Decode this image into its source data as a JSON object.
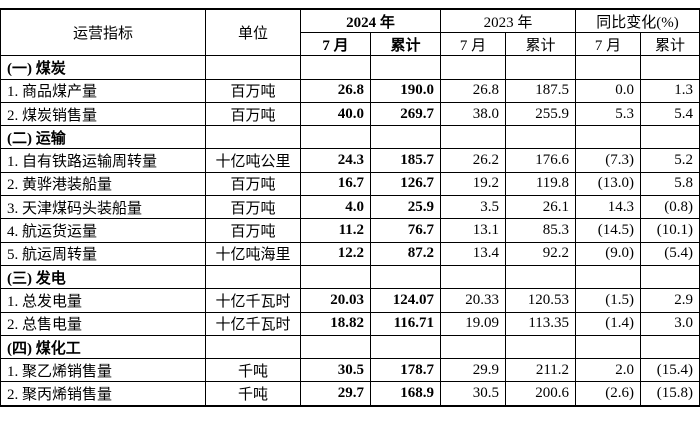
{
  "table": {
    "header": {
      "indicator": "运营指标",
      "unit": "单位",
      "year1": "2024 年",
      "year2": "2023 年",
      "change": "同比变化(%)",
      "sub": [
        "7 月",
        "累计",
        "7 月",
        "累计",
        "7 月",
        "累计"
      ]
    },
    "sections": [
      {
        "title": "(一) 煤炭",
        "rows": [
          [
            "1. 商品煤产量",
            "百万吨",
            "26.8",
            "190.0",
            "26.8",
            "187.5",
            "0.0",
            "1.3"
          ],
          [
            "2. 煤炭销售量",
            "百万吨",
            "40.0",
            "269.7",
            "38.0",
            "255.9",
            "5.3",
            "5.4"
          ]
        ]
      },
      {
        "title": "(二) 运输",
        "rows": [
          [
            "1. 自有铁路运输周转量",
            "十亿吨公里",
            "24.3",
            "185.7",
            "26.2",
            "176.6",
            "(7.3)",
            "5.2"
          ],
          [
            "2. 黄骅港装船量",
            "百万吨",
            "16.7",
            "126.7",
            "19.2",
            "119.8",
            "(13.0)",
            "5.8"
          ],
          [
            "3. 天津煤码头装船量",
            "百万吨",
            "4.0",
            "25.9",
            "3.5",
            "26.1",
            "14.3",
            "(0.8)"
          ],
          [
            "4. 航运货运量",
            "百万吨",
            "11.2",
            "76.7",
            "13.1",
            "85.3",
            "(14.5)",
            "(10.1)"
          ],
          [
            "5. 航运周转量",
            "十亿吨海里",
            "12.2",
            "87.2",
            "13.4",
            "92.2",
            "(9.0)",
            "(5.4)"
          ]
        ]
      },
      {
        "title": "(三) 发电",
        "rows": [
          [
            "1. 总发电量",
            "十亿千瓦时",
            "20.03",
            "124.07",
            "20.33",
            "120.53",
            "(1.5)",
            "2.9"
          ],
          [
            "2. 总售电量",
            "十亿千瓦时",
            "18.82",
            "116.71",
            "19.09",
            "113.35",
            "(1.4)",
            "3.0"
          ]
        ]
      },
      {
        "title": "(四) 煤化工",
        "rows": [
          [
            "1. 聚乙烯销售量",
            "千吨",
            "30.5",
            "178.7",
            "29.9",
            "211.2",
            "2.0",
            "(15.4)"
          ],
          [
            "2. 聚丙烯销售量",
            "千吨",
            "29.7",
            "168.9",
            "30.5",
            "200.6",
            "(2.6)",
            "(15.8)"
          ]
        ]
      }
    ]
  }
}
